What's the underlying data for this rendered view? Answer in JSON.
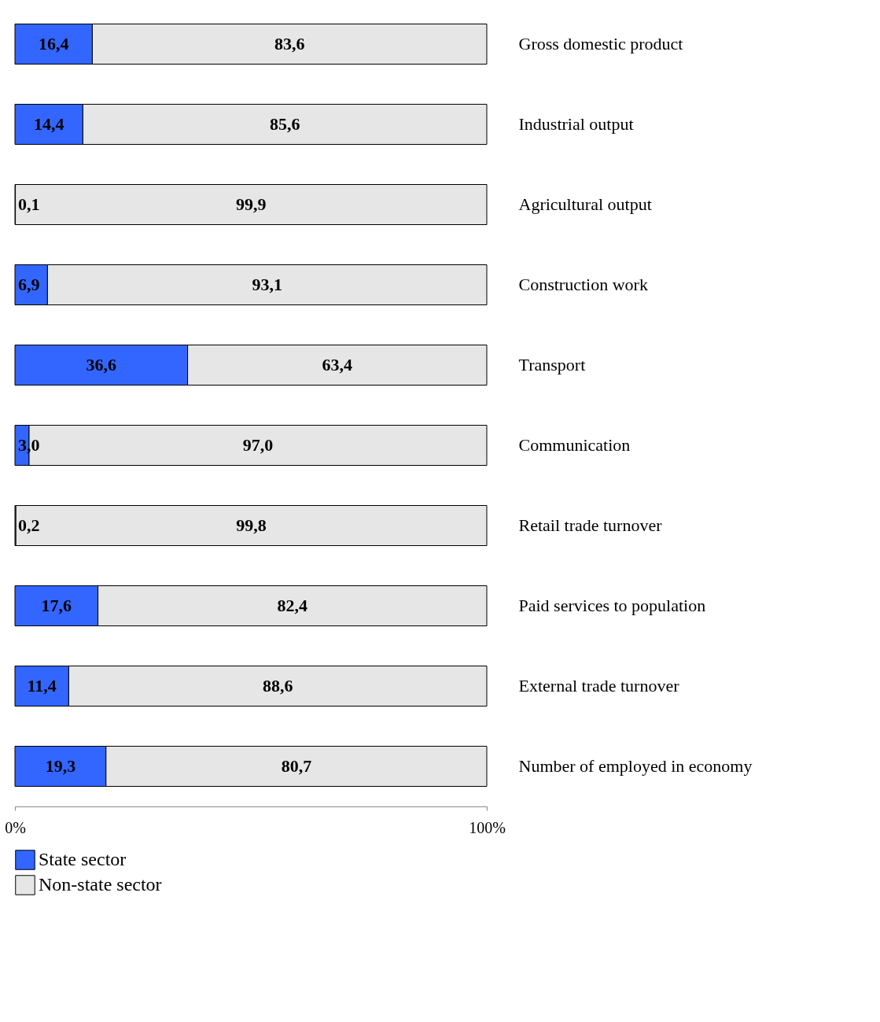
{
  "chart_data": {
    "type": "bar",
    "orientation": "horizontal",
    "stacked": true,
    "categories": [
      "Gross domestic product",
      "Industrial output",
      "Agricultural output",
      "Construction work",
      "Transport",
      "Communication",
      "Retail trade turnover",
      "Paid services to population",
      "External trade turnover",
      "Number of employed in economy"
    ],
    "series": [
      {
        "name": "State sector",
        "color": "#3366ff",
        "values": [
          16.4,
          14.4,
          0.1,
          6.9,
          36.6,
          3.0,
          0.2,
          17.6,
          11.4,
          19.3
        ],
        "value_labels": [
          "16,4",
          "14,4",
          "0,1",
          "6,9",
          "36,6",
          "3,0",
          "0,2",
          "17,6",
          "11,4",
          "19,3"
        ]
      },
      {
        "name": "Non-state sector",
        "color": "#e6e6e6",
        "values": [
          83.6,
          85.6,
          99.9,
          93.1,
          63.4,
          97.0,
          99.8,
          82.4,
          88.6,
          80.7
        ],
        "value_labels": [
          "83,6",
          "85,6",
          "99,9",
          "93,1",
          "63,4",
          "97,0",
          "99,8",
          "82,4",
          "88,6",
          "80,7"
        ]
      }
    ],
    "xlim": [
      0,
      100
    ],
    "xticks": [
      {
        "value": 0,
        "label": "0%"
      },
      {
        "value": 100,
        "label": "100%"
      }
    ],
    "grid": false,
    "legend": "bottom"
  }
}
